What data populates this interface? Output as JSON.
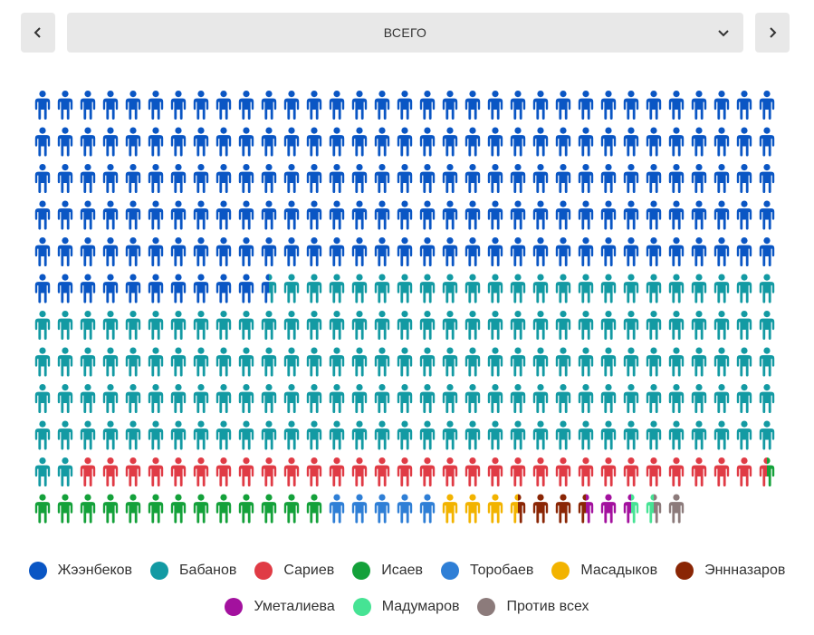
{
  "nav": {
    "prev_icon": "chevron-left-icon",
    "next_icon": "chevron-right-icon",
    "selector_label": "ВСЕГО",
    "selector_icon": "chevron-down-icon"
  },
  "chart_data": {
    "type": "pictogram",
    "title": "ВСЕГО",
    "columns": 33,
    "rows": 12,
    "unit": "one person icon",
    "legend_placement": "bottom-center",
    "series": [
      {
        "name": "Жээнбеков",
        "color": "#0a56c4",
        "value": 175.5
      },
      {
        "name": "Бабанов",
        "color": "#139aa3",
        "value": 156.5
      },
      {
        "name": "Сариев",
        "color": "#e03b45",
        "value": 30.5
      },
      {
        "name": "Исаев",
        "color": "#14a13a",
        "value": 13.5
      },
      {
        "name": "Торобаев",
        "color": "#2f7fd6",
        "value": 5
      },
      {
        "name": "Масадыков",
        "color": "#f2b300",
        "value": 3.5
      },
      {
        "name": "Эннназаров",
        "color": "#8a2605",
        "value": 3
      },
      {
        "name": "Уметалиева",
        "color": "#a3119e",
        "value": 2
      },
      {
        "name": "Мадумаров",
        "color": "#46e394",
        "value": 1
      },
      {
        "name": "Против всех",
        "color": "#8c7b7b",
        "value": 1.5
      }
    ]
  }
}
